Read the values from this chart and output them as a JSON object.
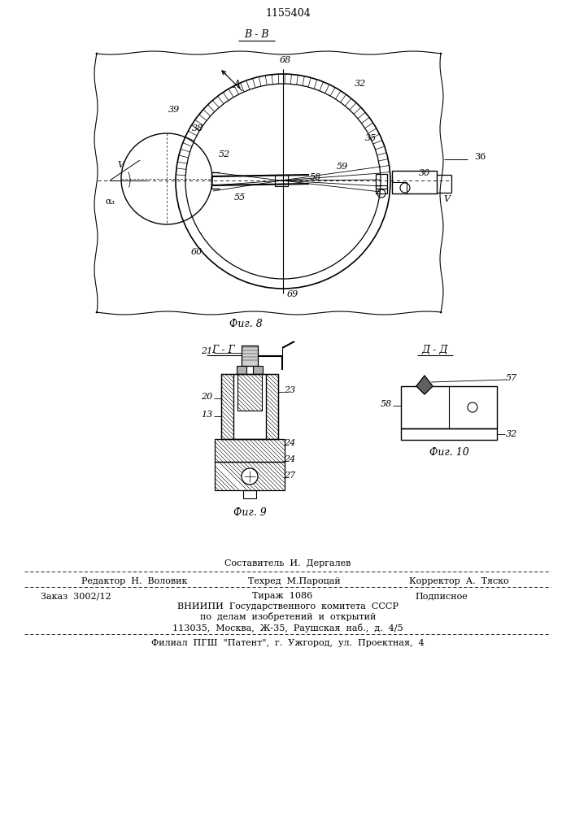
{
  "patent_number": "1155404",
  "bg_color": "#ffffff",
  "view_BB": "В - В",
  "view_GG": "Г - Г",
  "view_DD": "Д - Д",
  "fig8_label": "Фиг. 8",
  "fig9_label": "Фиг. 9",
  "fig10_label": "Фиг. 10",
  "label_36": "36",
  "label_68": "68",
  "label_32": "32",
  "label_39": "39",
  "label_38": "38",
  "label_52": "52",
  "label_V1": "V",
  "label_a3": "α₃",
  "label_60": "60",
  "label_55": "55",
  "label_58": "58",
  "label_59": "59",
  "label_35": "35",
  "label_30": "30",
  "label_V2": "V",
  "label_69": "69",
  "label_A": "А",
  "label_21": "21",
  "label_20": "20",
  "label_13": "13",
  "label_23": "23",
  "label_24a": "24",
  "label_24b": "24",
  "label_27": "27",
  "label_57": "57",
  "label_58b": "58",
  "label_32b": "32",
  "footer_composer": "Составитель  И.  Дергалев",
  "footer_editor": "Редактор  Н.  Воловик",
  "footer_tech": "Техред  М.Пароцай",
  "footer_corrector": "Корректор  А.  Тяско",
  "footer_order": "Заказ  3002/12",
  "footer_tirazh": "Тираж  1086",
  "footer_podp": "Подписное",
  "footer_vniipи": "ВНИИПИ  Государственного  комитета  СССР",
  "footer_dela": "по  делам  изобретений  и  открытий",
  "footer_addr": "113035,  Москва,  Ж-35,  Раушская  наб.,  д.  4/5",
  "footer_filial": "Филиал  ПГШ  \"Патент\",  г.  Ужгород,  ул.  Проектная,  4"
}
